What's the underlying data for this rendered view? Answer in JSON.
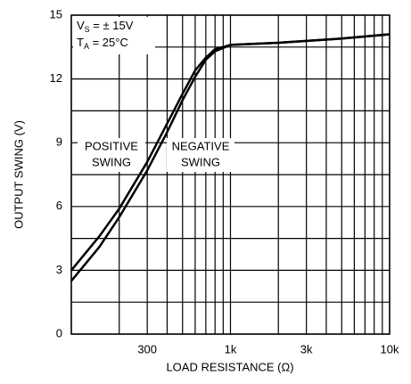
{
  "chart_data": {
    "type": "line",
    "ylabel": "OUTPUT SWING (V)",
    "xlabel": "LOAD RESISTANCE (Ω)",
    "xscale": "log",
    "xlim": [
      100,
      10000
    ],
    "ylim": [
      0,
      15
    ],
    "xticks": [
      300,
      {
        "value": 1000,
        "label": "1k"
      },
      {
        "value": 3000,
        "label": "3k"
      },
      {
        "value": 10000,
        "label": "10k"
      }
    ],
    "yticks": [
      0,
      3,
      6,
      9,
      12,
      15
    ],
    "xgrid": [
      100,
      200,
      300,
      400,
      500,
      600,
      700,
      800,
      900,
      1000,
      2000,
      3000,
      4000,
      5000,
      6000,
      7000,
      8000,
      9000,
      10000
    ],
    "ygrid": [
      0,
      1.5,
      3,
      4.5,
      6,
      7.5,
      9,
      10.5,
      12,
      13.5,
      15
    ],
    "grid": true,
    "x": [
      100,
      150,
      200,
      300,
      400,
      500,
      600,
      700,
      800,
      1000,
      2000,
      5000,
      10000
    ],
    "series": [
      {
        "name": "POSITIVE SWING",
        "label_lines": [
          "POSITIVE",
          "SWING"
        ],
        "color": "#000000",
        "values": [
          3.0,
          4.6,
          5.9,
          8.1,
          9.9,
          11.3,
          12.4,
          13.0,
          13.4,
          13.6,
          13.7,
          13.9,
          14.1
        ]
      },
      {
        "name": "NEGATIVE SWING",
        "label_lines": [
          "NEGATIVE",
          "SWING"
        ],
        "color": "#000000",
        "values": [
          2.5,
          4.1,
          5.5,
          7.7,
          9.5,
          11.0,
          12.1,
          12.9,
          13.3,
          13.6,
          13.7,
          13.9,
          14.1
        ]
      }
    ],
    "annotations": [
      {
        "main": "V",
        "sub": "S",
        "rest": " = ± 15V"
      },
      {
        "main": "T",
        "sub": "A",
        "rest": " = 25°C"
      }
    ]
  }
}
